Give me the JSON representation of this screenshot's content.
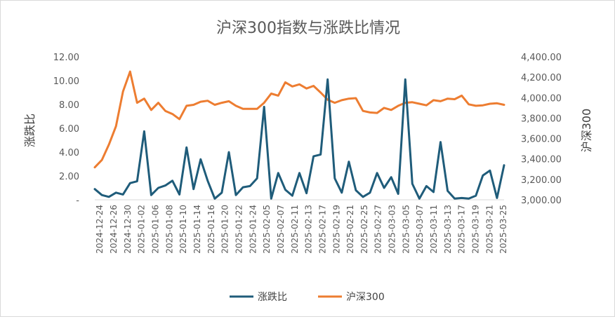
{
  "chart_data": {
    "type": "line",
    "title": "沪深300指数与涨跌比情况",
    "ylabel": "涨跌比",
    "y2label": "沪深300",
    "ylim": [
      0,
      12
    ],
    "y2lim": [
      3000,
      4400
    ],
    "y_ticks": [
      "-",
      "2.00",
      "4.00",
      "6.00",
      "8.00",
      "10.00",
      "12.00"
    ],
    "y2_ticks": [
      "3,000.00",
      "3,200.00",
      "3,400.00",
      "3,600.00",
      "3,800.00",
      "4,000.00",
      "4,200.00",
      "4,400.00"
    ],
    "x_tick_labels": [
      "2024-12-24",
      "2024-12-26",
      "2024-12-30",
      "2025-01-02",
      "2025-01-06",
      "2025-01-08",
      "2025-01-10",
      "2025-01-14",
      "2025-01-16",
      "2025-01-20",
      "2025-01-22",
      "2025-01-24",
      "2025-02-05",
      "2025-02-07",
      "2025-02-11",
      "2025-02-13",
      "2025-02-17",
      "2025-02-19",
      "2025-02-21",
      "2025-02-25",
      "2025-02-27",
      "2025-03-03",
      "2025-03-05",
      "2025-03-07",
      "2025-03-11",
      "2025-03-13",
      "2025-03-17",
      "2025-03-19",
      "2025-03-21",
      "2025-03-25"
    ],
    "legend": [
      "涨跌比",
      "沪深300"
    ],
    "legend_position": "bottom",
    "series": [
      {
        "name": "涨跌比",
        "axis": "left",
        "color": "#1f5c7a",
        "values": [
          0.9,
          0.4,
          0.25,
          0.6,
          0.45,
          1.4,
          1.55,
          5.75,
          0.4,
          1.0,
          1.2,
          1.6,
          0.45,
          4.4,
          0.9,
          3.4,
          1.6,
          0.1,
          0.6,
          4.0,
          0.4,
          1.05,
          1.15,
          1.8,
          7.8,
          0.1,
          2.25,
          0.85,
          0.35,
          2.25,
          0.55,
          3.65,
          3.8,
          10.1,
          1.8,
          0.6,
          3.2,
          0.8,
          0.25,
          0.6,
          2.25,
          1.0,
          1.9,
          0.5,
          10.1,
          1.35,
          0.1,
          1.15,
          0.65,
          4.85,
          0.75,
          0.1,
          0.15,
          0.1,
          0.35,
          2.05,
          2.45,
          0.15,
          2.9
        ]
      },
      {
        "name": "沪深300",
        "axis": "right",
        "color": "#ed7d31",
        "values": [
          3318,
          3390,
          3540,
          3720,
          4060,
          4255,
          3950,
          3990,
          3880,
          3950,
          3870,
          3840,
          3790,
          3920,
          3930,
          3960,
          3970,
          3930,
          3950,
          3965,
          3920,
          3890,
          3890,
          3890,
          3950,
          4040,
          4020,
          4150,
          4110,
          4130,
          4090,
          4115,
          4050,
          3980,
          3950,
          3975,
          3990,
          3995,
          3870,
          3855,
          3850,
          3900,
          3880,
          3920,
          3950,
          3955,
          3940,
          3925,
          3975,
          3965,
          3990,
          3985,
          4020,
          3935,
          3920,
          3925,
          3940,
          3945,
          3930
        ]
      }
    ]
  }
}
